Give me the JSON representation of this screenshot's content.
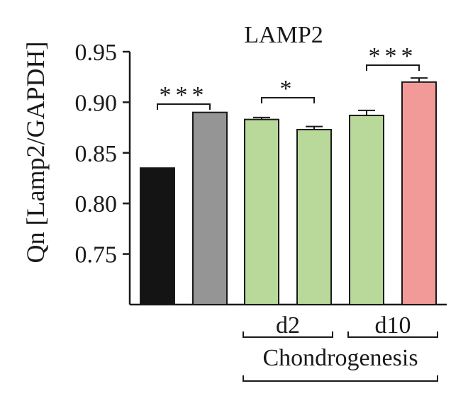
{
  "chart_data": {
    "type": "bar",
    "title": "LAMP2",
    "ylabel": "Qn [Lamp2/GAPDH]",
    "xlabel": "",
    "ylim": [
      0.7,
      0.95
    ],
    "yticks": [
      0.95,
      0.9,
      0.85,
      0.8,
      0.75
    ],
    "ytick_labels": [
      "0.95",
      "0.90",
      "0.85",
      "0.80",
      "0.75"
    ],
    "grid": false,
    "values": [
      0.835,
      0.89,
      0.883,
      0.873,
      0.887,
      0.92
    ],
    "errors": [
      0.0,
      0.0,
      0.002,
      0.003,
      0.005,
      0.004
    ],
    "bar_colors": [
      "#141414",
      "#959595",
      "#b8d99a",
      "#b8d99a",
      "#b8d99a",
      "#f29a98"
    ],
    "significance": [
      {
        "from": 0,
        "to": 1,
        "label": "***"
      },
      {
        "from": 2,
        "to": 3,
        "label": "*"
      },
      {
        "from": 4,
        "to": 5,
        "label": "***"
      }
    ],
    "group_labels": [
      {
        "from": 2,
        "to": 3,
        "label": "d2"
      },
      {
        "from": 4,
        "to": 5,
        "label": "d10"
      }
    ],
    "super_group_label": {
      "from": 2,
      "to": 5,
      "label": "Chondrogenesis"
    }
  }
}
